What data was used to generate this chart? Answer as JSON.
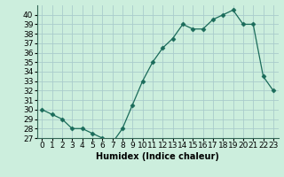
{
  "x": [
    0,
    1,
    2,
    3,
    4,
    5,
    6,
    7,
    8,
    9,
    10,
    11,
    12,
    13,
    14,
    15,
    16,
    17,
    18,
    19,
    20,
    21,
    22,
    23
  ],
  "y": [
    30,
    29.5,
    29,
    28,
    28,
    27.5,
    27,
    26.5,
    28,
    30.5,
    33,
    35,
    36.5,
    37.5,
    39,
    38.5,
    38.5,
    39.5,
    40,
    40.5,
    39,
    39,
    33.5,
    32
  ],
  "line_color": "#1a6b5a",
  "marker": "D",
  "marker_size": 2.5,
  "bg_color": "#cceedd",
  "grid_color": "#aacccc",
  "xlabel": "Humidex (Indice chaleur)",
  "ylim": [
    27,
    41
  ],
  "xlim": [
    -0.5,
    23.5
  ],
  "yticks": [
    27,
    28,
    29,
    30,
    31,
    32,
    33,
    34,
    35,
    36,
    37,
    38,
    39,
    40
  ],
  "xtick_labels": [
    "0",
    "1",
    "2",
    "3",
    "4",
    "5",
    "6",
    "7",
    "8",
    "9",
    "10",
    "11",
    "12",
    "13",
    "14",
    "15",
    "16",
    "17",
    "18",
    "19",
    "20",
    "21",
    "22",
    "23"
  ],
  "label_fontsize": 7,
  "tick_fontsize": 6.5
}
